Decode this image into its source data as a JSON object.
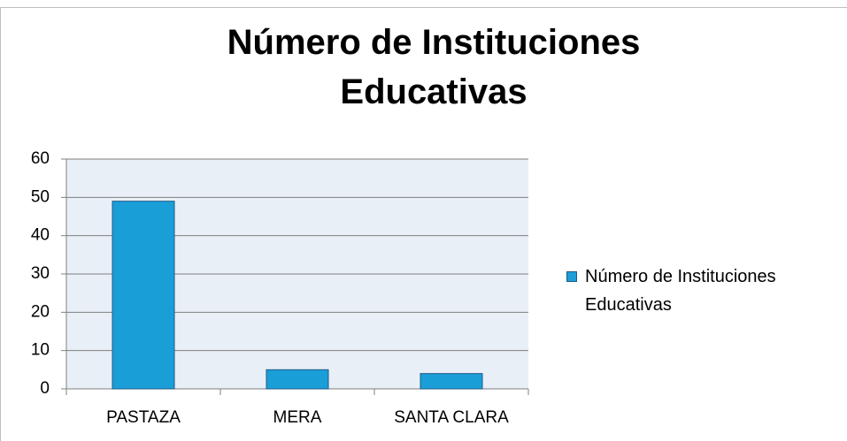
{
  "chart_data": {
    "type": "bar",
    "title": "Número de Instituciones Educativas",
    "categories": [
      "PASTAZA",
      "MERA",
      "SANTA CLARA"
    ],
    "series": [
      {
        "name": "Número de Instituciones Educativas",
        "color": "#1a9ed8",
        "values": [
          49,
          5,
          4
        ]
      }
    ],
    "ylim": [
      0,
      60
    ],
    "yticks": [
      0,
      10,
      20,
      30,
      40,
      50,
      60
    ],
    "grid": true,
    "legend": "right"
  }
}
